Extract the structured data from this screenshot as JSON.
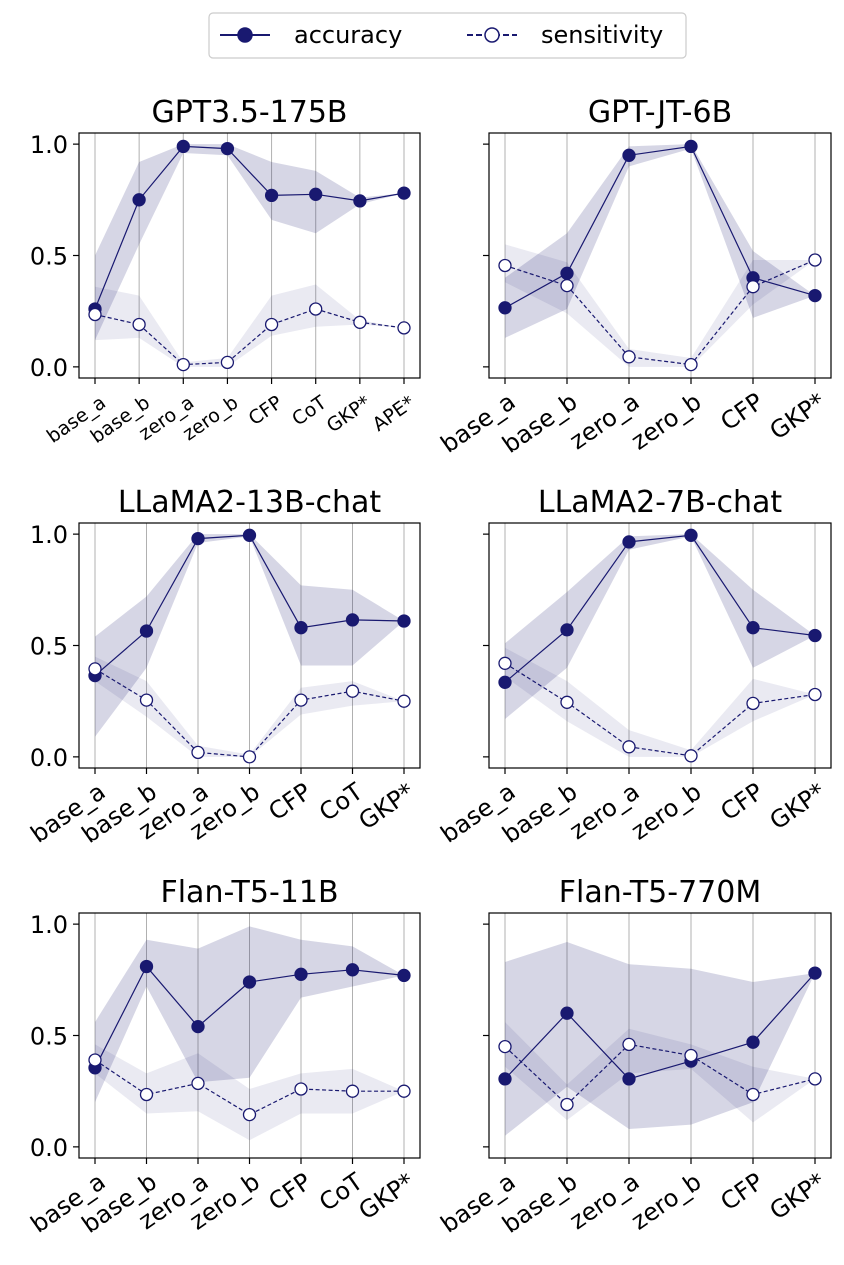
{
  "colors": {
    "accuracy": "#191970",
    "band": "#191970",
    "grid": "#b0b0b0"
  },
  "legend": {
    "accuracy_label": "accuracy",
    "sensitivity_label": "sensitivity"
  },
  "chart_data": [
    {
      "type": "line",
      "title": "GPT3.5-175B",
      "categories": [
        "base_a",
        "base_b",
        "zero_a",
        "zero_b",
        "CFP",
        "CoT",
        "GKP*",
        "APE*"
      ],
      "ylim": [
        -0.05,
        1.05
      ],
      "yticks": [
        "0.0",
        "0.5",
        "1.0"
      ],
      "show_ytick_labels": true,
      "small_xticks": true,
      "grid": "vertical",
      "series": [
        {
          "name": "accuracy",
          "values": [
            0.26,
            0.75,
            0.99,
            0.98,
            0.77,
            0.775,
            0.745,
            0.78
          ],
          "band_low": [
            0.12,
            0.55,
            0.96,
            0.95,
            0.66,
            0.6,
            0.73,
            0.78
          ],
          "band_high": [
            0.5,
            0.92,
            1.0,
            1.0,
            0.92,
            0.88,
            0.76,
            0.78
          ]
        },
        {
          "name": "sensitivity",
          "values": [
            0.235,
            0.19,
            0.01,
            0.02,
            0.19,
            0.26,
            0.2,
            0.175
          ],
          "band_low": [
            0.12,
            0.13,
            0.0,
            0.0,
            0.14,
            0.18,
            0.19,
            0.175
          ],
          "band_high": [
            0.36,
            0.32,
            0.02,
            0.04,
            0.32,
            0.37,
            0.21,
            0.175
          ]
        }
      ]
    },
    {
      "type": "line",
      "title": "GPT-JT-6B",
      "categories": [
        "base_a",
        "base_b",
        "zero_a",
        "zero_b",
        "CFP",
        "GKP*"
      ],
      "ylim": [
        -0.05,
        1.05
      ],
      "yticks": [
        "0.0",
        "0.5",
        "1.0"
      ],
      "show_ytick_labels": false,
      "small_xticks": false,
      "grid": "vertical",
      "series": [
        {
          "name": "accuracy",
          "values": [
            0.265,
            0.42,
            0.95,
            0.99,
            0.4,
            0.32
          ],
          "band_low": [
            0.13,
            0.26,
            0.9,
            0.98,
            0.22,
            0.32
          ],
          "band_high": [
            0.4,
            0.6,
            0.99,
            1.0,
            0.52,
            0.32
          ]
        },
        {
          "name": "sensitivity",
          "values": [
            0.455,
            0.365,
            0.045,
            0.01,
            0.36,
            0.48
          ],
          "band_low": [
            0.38,
            0.24,
            0.0,
            0.0,
            0.28,
            0.48
          ],
          "band_high": [
            0.55,
            0.47,
            0.08,
            0.04,
            0.48,
            0.48
          ]
        }
      ]
    },
    {
      "type": "line",
      "title": "LLaMA2-13B-chat",
      "categories": [
        "base_a",
        "base_b",
        "zero_a",
        "zero_b",
        "CFP",
        "CoT",
        "GKP*"
      ],
      "ylim": [
        -0.05,
        1.05
      ],
      "yticks": [
        "0.0",
        "0.5",
        "1.0"
      ],
      "show_ytick_labels": true,
      "small_xticks": false,
      "grid": "vertical",
      "series": [
        {
          "name": "accuracy",
          "values": [
            0.365,
            0.565,
            0.98,
            0.995,
            0.58,
            0.615,
            0.61
          ],
          "band_low": [
            0.09,
            0.4,
            0.96,
            0.99,
            0.41,
            0.41,
            0.61
          ],
          "band_high": [
            0.54,
            0.72,
            1.0,
            1.0,
            0.77,
            0.75,
            0.61
          ]
        },
        {
          "name": "sensitivity",
          "values": [
            0.395,
            0.255,
            0.02,
            0.0,
            0.255,
            0.295,
            0.25
          ],
          "band_low": [
            0.34,
            0.18,
            0.0,
            0.0,
            0.19,
            0.23,
            0.25
          ],
          "band_high": [
            0.45,
            0.34,
            0.05,
            0.01,
            0.31,
            0.34,
            0.25
          ]
        }
      ]
    },
    {
      "type": "line",
      "title": "LLaMA2-7B-chat",
      "categories": [
        "base_a",
        "base_b",
        "zero_a",
        "zero_b",
        "CFP",
        "GKP*"
      ],
      "ylim": [
        -0.05,
        1.05
      ],
      "yticks": [
        "0.0",
        "0.5",
        "1.0"
      ],
      "show_ytick_labels": false,
      "small_xticks": false,
      "grid": "vertical",
      "series": [
        {
          "name": "accuracy",
          "values": [
            0.335,
            0.57,
            0.965,
            0.995,
            0.58,
            0.545
          ],
          "band_low": [
            0.17,
            0.4,
            0.93,
            0.99,
            0.4,
            0.545
          ],
          "band_high": [
            0.51,
            0.74,
            0.99,
            1.0,
            0.75,
            0.545
          ]
        },
        {
          "name": "sensitivity",
          "values": [
            0.42,
            0.245,
            0.045,
            0.005,
            0.24,
            0.28
          ],
          "band_low": [
            0.36,
            0.16,
            0.0,
            0.0,
            0.16,
            0.28
          ],
          "band_high": [
            0.49,
            0.34,
            0.12,
            0.03,
            0.35,
            0.28
          ]
        }
      ]
    },
    {
      "type": "line",
      "title": "Flan-T5-11B",
      "categories": [
        "base_a",
        "base_b",
        "zero_a",
        "zero_b",
        "CFP",
        "CoT",
        "GKP*"
      ],
      "ylim": [
        -0.05,
        1.05
      ],
      "yticks": [
        "0.0",
        "0.5",
        "1.0"
      ],
      "show_ytick_labels": true,
      "small_xticks": false,
      "grid": "vertical",
      "series": [
        {
          "name": "accuracy",
          "values": [
            0.355,
            0.81,
            0.54,
            0.74,
            0.775,
            0.795,
            0.77
          ],
          "band_low": [
            0.2,
            0.72,
            0.29,
            0.31,
            0.67,
            0.72,
            0.77
          ],
          "band_high": [
            0.56,
            0.93,
            0.89,
            0.99,
            0.93,
            0.9,
            0.77
          ]
        },
        {
          "name": "sensitivity",
          "values": [
            0.39,
            0.235,
            0.285,
            0.145,
            0.26,
            0.25,
            0.25
          ],
          "band_low": [
            0.33,
            0.15,
            0.16,
            0.03,
            0.15,
            0.15,
            0.25
          ],
          "band_high": [
            0.46,
            0.33,
            0.42,
            0.26,
            0.33,
            0.35,
            0.25
          ]
        }
      ]
    },
    {
      "type": "line",
      "title": "Flan-T5-770M",
      "categories": [
        "base_a",
        "base_b",
        "zero_a",
        "zero_b",
        "CFP",
        "GKP*"
      ],
      "ylim": [
        -0.05,
        1.05
      ],
      "yticks": [
        "0.0",
        "0.5",
        "1.0"
      ],
      "show_ytick_labels": false,
      "small_xticks": false,
      "grid": "vertical",
      "series": [
        {
          "name": "accuracy",
          "values": [
            0.305,
            0.6,
            0.305,
            0.385,
            0.47,
            0.78
          ],
          "band_low": [
            0.05,
            0.27,
            0.08,
            0.1,
            0.2,
            0.78
          ],
          "band_high": [
            0.83,
            0.92,
            0.82,
            0.8,
            0.74,
            0.78
          ]
        },
        {
          "name": "sensitivity",
          "values": [
            0.45,
            0.19,
            0.46,
            0.41,
            0.235,
            0.305
          ],
          "band_low": [
            0.36,
            0.12,
            0.33,
            0.35,
            0.11,
            0.305
          ],
          "band_high": [
            0.56,
            0.28,
            0.53,
            0.46,
            0.36,
            0.305
          ]
        }
      ]
    }
  ]
}
